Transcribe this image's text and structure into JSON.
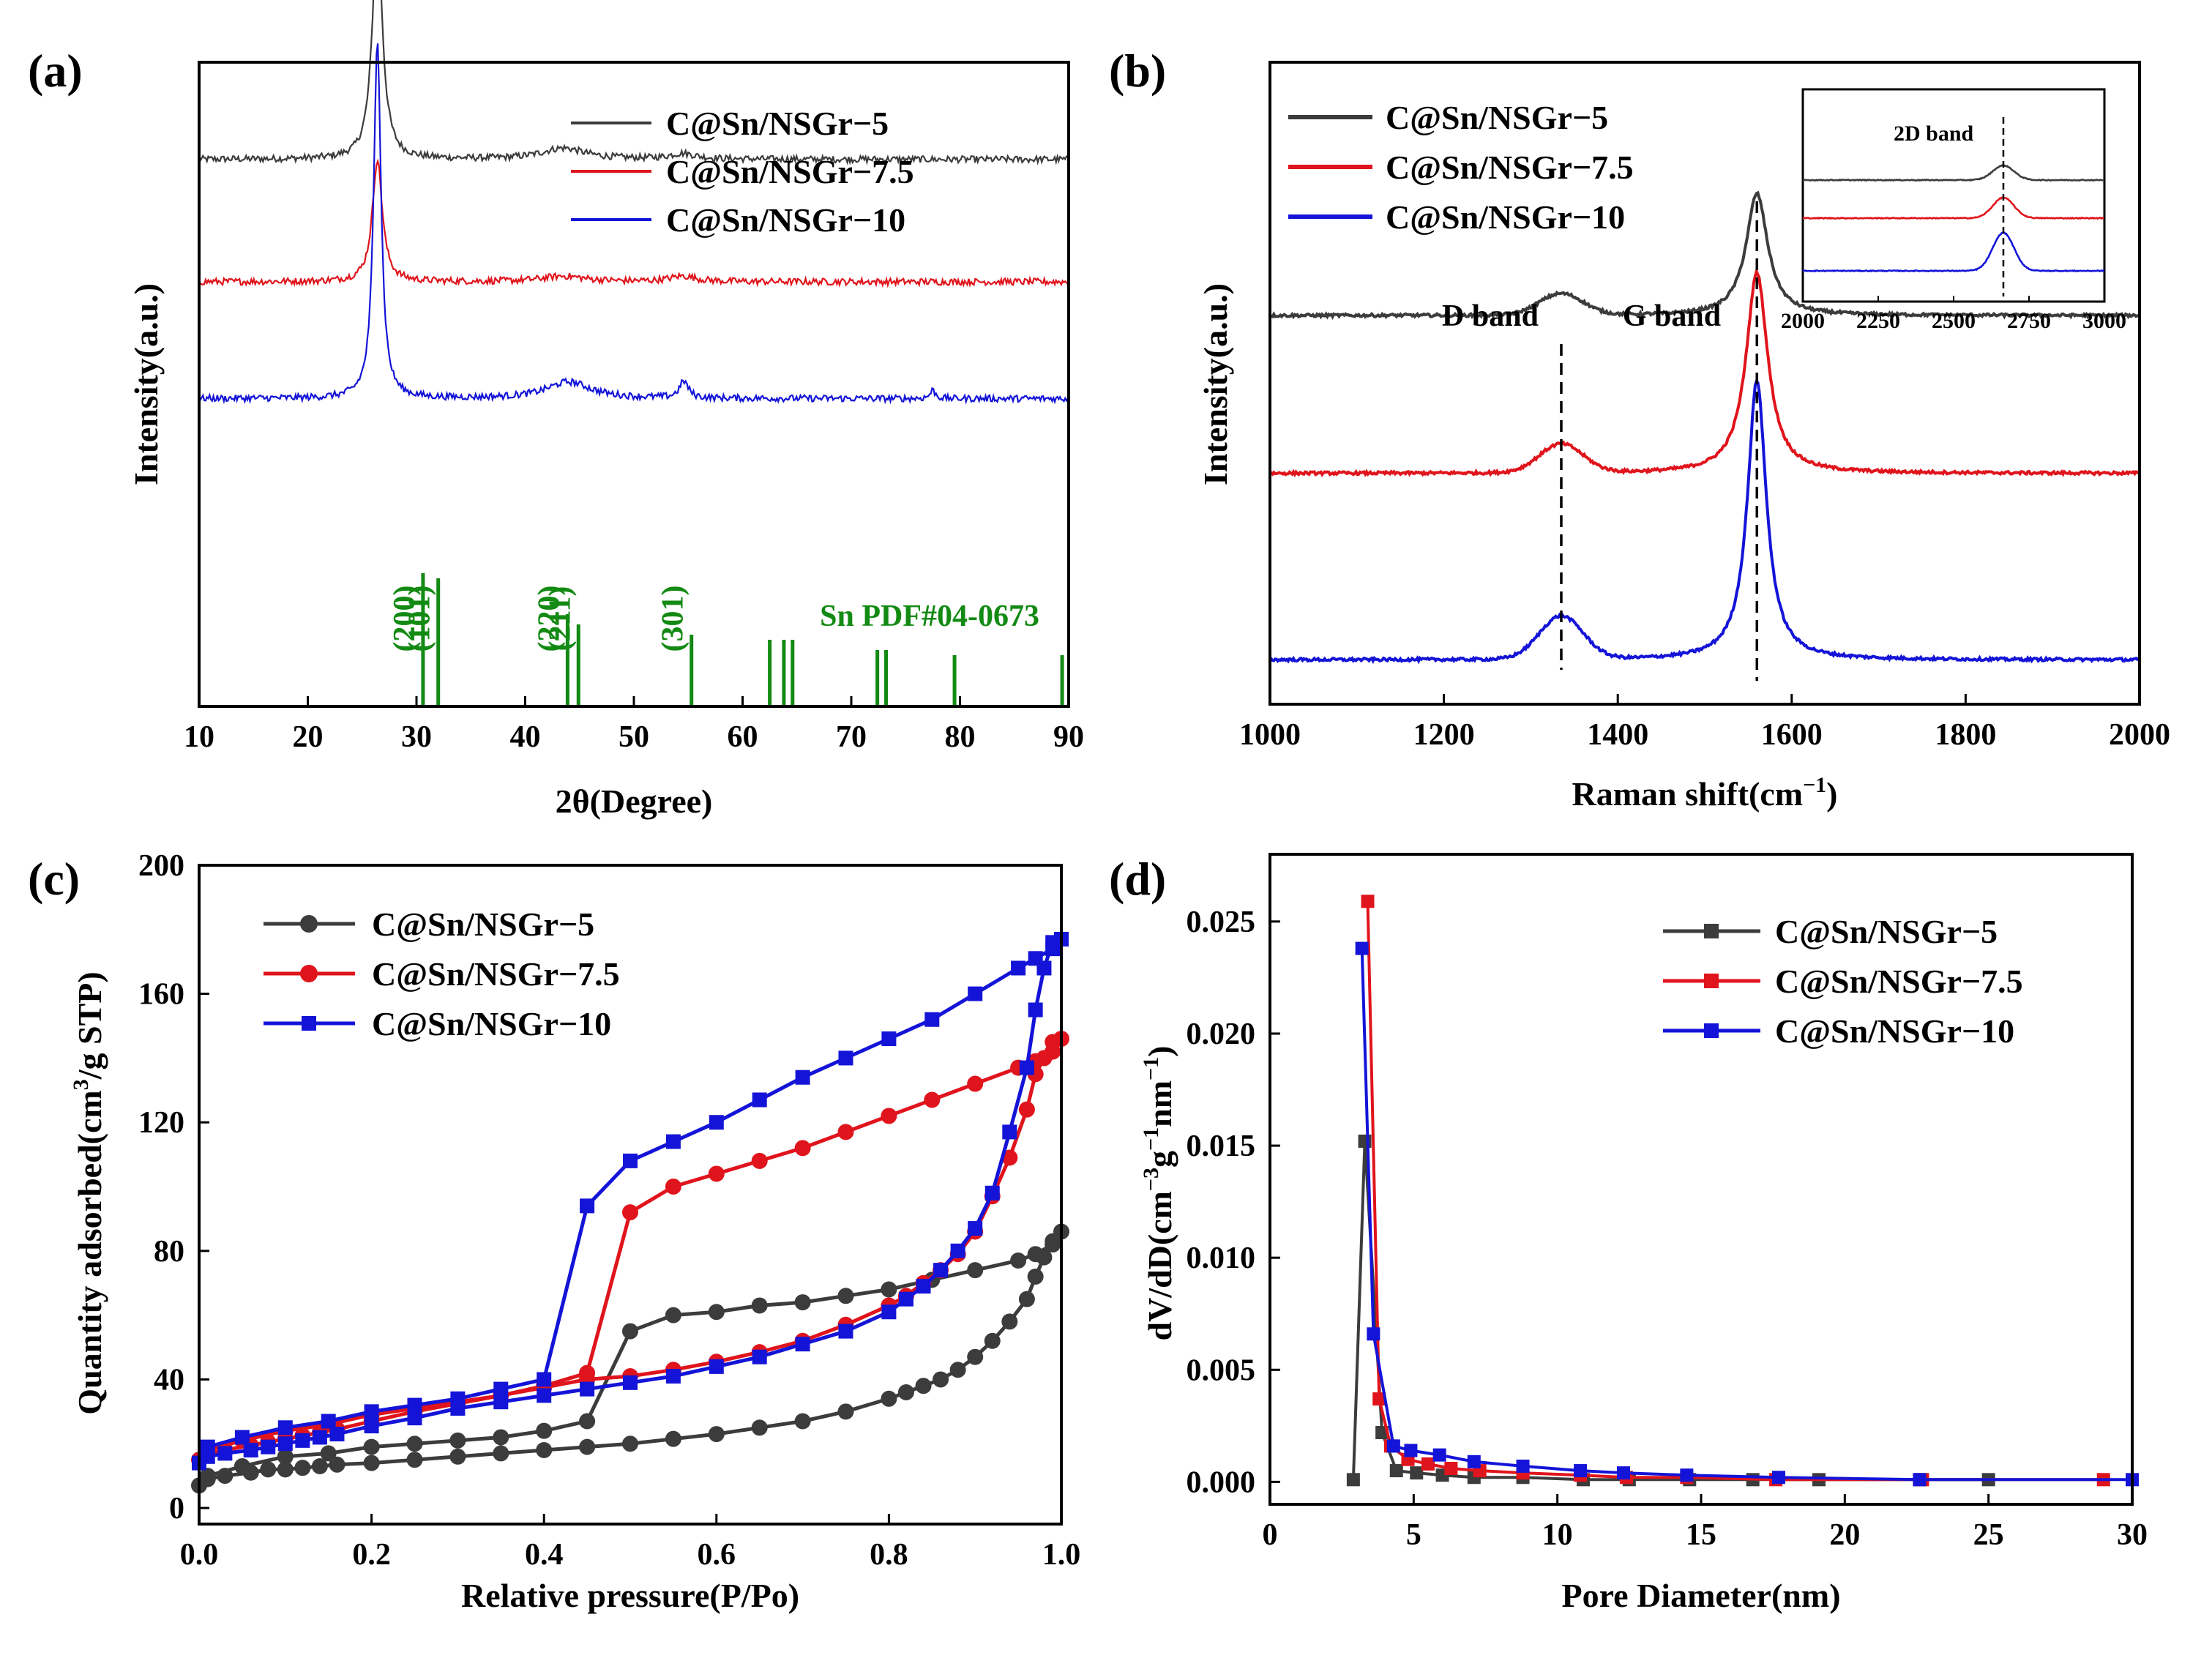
{
  "colors": {
    "series5": "#3c3c3c",
    "series75": "#e0141c",
    "series10": "#1414d8",
    "pdf": "#138a13"
  },
  "chart_data": [
    {
      "panel": "(a)",
      "type": "line",
      "title": "",
      "xlabel": "2θ(Degree)",
      "ylabel": "Intensity(a.u.)",
      "xlim": [
        10,
        90
      ],
      "xticks": [
        10,
        20,
        30,
        40,
        50,
        60,
        70,
        80,
        90
      ],
      "legend": [
        "C@Sn/NSGr−5",
        "C@Sn/NSGr−7.5",
        "C@Sn/NSGr−10"
      ],
      "legend_position": "top-right",
      "series": [
        {
          "name": "C@Sn/NSGr−5",
          "baseline": 0.72,
          "peaks": [
            [
              26.4,
              0.42,
              0.55
            ],
            [
              43.5,
              0.02,
              2.5
            ],
            [
              54.5,
              0.01,
              1.5
            ]
          ]
        },
        {
          "name": "C@Sn/NSGr−7.5",
          "baseline": 0.5,
          "peaks": [
            [
              26.4,
              0.22,
              0.55
            ],
            [
              43.5,
              0.01,
              2.5
            ],
            [
              54.5,
              0.01,
              1.5
            ]
          ]
        },
        {
          "name": "C@Sn/NSGr−10",
          "baseline": 0.29,
          "peaks": [
            [
              26.4,
              0.65,
              0.4
            ],
            [
              44.0,
              0.03,
              2.5
            ],
            [
              54.6,
              0.03,
              0.5
            ],
            [
              77.5,
              0.015,
              0.3
            ]
          ]
        }
      ],
      "reference": {
        "name": "Sn PDF#04-0673",
        "lines": [
          30.6,
          32.0,
          43.9,
          44.9,
          55.3,
          62.5,
          63.8,
          64.6,
          72.4,
          73.2,
          79.5,
          89.4
        ],
        "heights": [
          0.26,
          0.25,
          0.18,
          0.16,
          0.14,
          0.13,
          0.13,
          0.13,
          0.11,
          0.11,
          0.1,
          0.1
        ],
        "labels": [
          {
            "text": "(200)",
            "x": 30.6
          },
          {
            "text": "(101)",
            "x": 32.0
          },
          {
            "text": "(220)",
            "x": 43.9
          },
          {
            "text": "(211)",
            "x": 44.9
          },
          {
            "text": "(301)",
            "x": 55.3
          }
        ]
      }
    },
    {
      "panel": "(b)",
      "type": "line",
      "xlabel": "Raman shift(cm",
      "xlabel_sup": "−1",
      "xlabel_tail": ")",
      "ylabel": "Intensity(a.u.)",
      "xlim": [
        1000,
        2000
      ],
      "xticks": [
        1000,
        1200,
        1400,
        1600,
        1800,
        2000
      ],
      "legend": [
        "C@Sn/NSGr−5",
        "C@Sn/NSGr−7.5",
        "C@Sn/NSGr−10"
      ],
      "legend_position": "top-left",
      "annotations": {
        "d_band": "D band",
        "g_band": "G band",
        "d_x": 1335,
        "g_x": 1560
      },
      "series": [
        {
          "name": "C@Sn/NSGr−5",
          "baseline": 0.55,
          "d": [
            1335,
            0.03,
            25
          ],
          "g": [
            1560,
            0.17,
            15
          ]
        },
        {
          "name": "C@Sn/NSGr−7.5",
          "baseline": 0.33,
          "d": [
            1335,
            0.04,
            25
          ],
          "g": [
            1560,
            0.28,
            15
          ]
        },
        {
          "name": "C@Sn/NSGr−10",
          "baseline": 0.07,
          "d": [
            1335,
            0.06,
            25
          ],
          "g": [
            1560,
            0.39,
            13
          ]
        }
      ],
      "inset": {
        "title": "2D band",
        "xlim": [
          2000,
          3000
        ],
        "xticks": [
          2000,
          2250,
          2500,
          2750,
          3000
        ],
        "peak_x": 2665,
        "series": [
          {
            "name": "C@Sn/NSGr−5",
            "baseline": 0.72,
            "amp": 0.1
          },
          {
            "name": "C@Sn/NSGr−7.5",
            "baseline": 0.46,
            "amp": 0.14
          },
          {
            "name": "C@Sn/NSGr−10",
            "baseline": 0.1,
            "amp": 0.26
          }
        ]
      }
    },
    {
      "panel": "(c)",
      "type": "line",
      "xlabel": "Relative pressure(P/Po)",
      "ylabel": "Quantity adsorbed(cm",
      "ylabel_sup": "3",
      "ylabel_tail": "/g STP)",
      "xlim": [
        0.0,
        1.0
      ],
      "ylim": [
        -5,
        200
      ],
      "xticks": [
        0.0,
        0.2,
        0.4,
        0.6,
        0.8,
        1.0
      ],
      "yticks": [
        0,
        40,
        80,
        120,
        160,
        200
      ],
      "legend": [
        "C@Sn/NSGr−5",
        "C@Sn/NSGr−7.5",
        "C@Sn/NSGr−10"
      ],
      "legend_position": "top-left",
      "series": [
        {
          "name": "C@Sn/NSGr−5",
          "marker": "circle",
          "x": [
            0.0,
            0.01,
            0.03,
            0.06,
            0.08,
            0.1,
            0.12,
            0.14,
            0.16,
            0.2,
            0.25,
            0.3,
            0.35,
            0.4,
            0.45,
            0.5,
            0.55,
            0.6,
            0.65,
            0.7,
            0.75,
            0.8,
            0.82,
            0.84,
            0.86,
            0.88,
            0.9,
            0.92,
            0.94,
            0.96,
            0.97,
            0.98,
            0.99,
            1.0,
            0.99,
            0.97,
            0.95,
            0.9,
            0.85,
            0.8,
            0.75,
            0.7,
            0.65,
            0.6,
            0.55,
            0.5,
            0.45,
            0.4,
            0.35,
            0.3,
            0.25,
            0.2,
            0.15,
            0.1,
            0.05,
            0.01
          ],
          "y": [
            7,
            9,
            10,
            11,
            12,
            12,
            12.5,
            13,
            13.5,
            14,
            15,
            16,
            17,
            18,
            19,
            20,
            21.5,
            23,
            25,
            27,
            30,
            34,
            36,
            38,
            40,
            43,
            47,
            52,
            58,
            65,
            72,
            78,
            83,
            86,
            82,
            79,
            77,
            74,
            71,
            68,
            66,
            64,
            63,
            61,
            60,
            55,
            27,
            24,
            22,
            21,
            20,
            19,
            17,
            16,
            13,
            10
          ]
        },
        {
          "name": "C@Sn/NSGr−7.5",
          "marker": "circle",
          "x": [
            0.0,
            0.01,
            0.03,
            0.06,
            0.08,
            0.1,
            0.12,
            0.14,
            0.16,
            0.2,
            0.25,
            0.3,
            0.35,
            0.4,
            0.45,
            0.5,
            0.55,
            0.6,
            0.65,
            0.7,
            0.75,
            0.8,
            0.82,
            0.84,
            0.86,
            0.88,
            0.9,
            0.92,
            0.94,
            0.96,
            0.97,
            0.98,
            0.99,
            1.0,
            0.99,
            0.97,
            0.95,
            0.9,
            0.85,
            0.8,
            0.75,
            0.7,
            0.65,
            0.6,
            0.55,
            0.5,
            0.45,
            0.4,
            0.35,
            0.3,
            0.25,
            0.2,
            0.15,
            0.1,
            0.05,
            0.01
          ],
          "y": [
            15,
            17,
            18,
            19.5,
            20.5,
            21.5,
            22.5,
            23.5,
            24.5,
            27,
            30,
            32.5,
            35,
            37.5,
            40,
            41,
            43,
            45.5,
            48.5,
            52,
            57,
            63,
            66,
            70,
            74,
            79,
            86,
            97,
            109,
            124,
            135,
            140,
            145,
            146,
            142,
            139,
            137,
            132,
            127,
            122,
            117,
            112,
            108,
            104,
            100,
            92,
            42,
            38,
            35,
            33,
            31,
            29,
            26,
            24,
            21,
            18
          ]
        },
        {
          "name": "C@Sn/NSGr−10",
          "marker": "square",
          "x": [
            0.0,
            0.01,
            0.03,
            0.06,
            0.08,
            0.1,
            0.12,
            0.14,
            0.16,
            0.2,
            0.25,
            0.3,
            0.35,
            0.4,
            0.45,
            0.5,
            0.55,
            0.6,
            0.65,
            0.7,
            0.75,
            0.8,
            0.82,
            0.84,
            0.86,
            0.88,
            0.9,
            0.92,
            0.94,
            0.96,
            0.97,
            0.98,
            0.99,
            1.0,
            0.99,
            0.97,
            0.95,
            0.9,
            0.85,
            0.8,
            0.75,
            0.7,
            0.65,
            0.6,
            0.55,
            0.5,
            0.45,
            0.4,
            0.35,
            0.3,
            0.25,
            0.2,
            0.15,
            0.1,
            0.05,
            0.01
          ],
          "y": [
            14,
            16,
            17,
            18,
            19,
            20,
            21,
            22,
            23,
            25.5,
            28,
            31,
            33,
            35,
            37,
            39,
            41,
            44,
            47,
            51,
            55,
            61,
            65,
            69,
            74,
            80,
            87,
            98,
            117,
            137,
            155,
            168,
            176,
            177,
            174,
            171,
            168,
            160,
            152,
            146,
            140,
            134,
            127,
            120,
            114,
            108,
            94,
            40,
            37,
            34,
            32,
            30,
            27,
            25,
            22,
            19
          ]
        }
      ]
    },
    {
      "panel": "(d)",
      "type": "line",
      "xlabel": "Pore Diameter(nm)",
      "ylabel": "dV/dD(cm",
      "ylabel_sup1": "−3",
      "ylabel_mid": "g",
      "ylabel_sup2": "−1",
      "ylabel_mid2": "nm",
      "ylabel_sup3": "−1",
      "ylabel_tail": ")",
      "xlim": [
        0,
        30
      ],
      "ylim": [
        -0.001,
        0.028
      ],
      "xticks": [
        0,
        5,
        10,
        15,
        20,
        25,
        30
      ],
      "yticks": [
        "0.000",
        "0.005",
        "0.010",
        "0.015",
        "0.020",
        "0.025"
      ],
      "legend": [
        "C@Sn/NSGr−5",
        "C@Sn/NSGr−7.5",
        "C@Sn/NSGr−10"
      ],
      "legend_position": "top-right",
      "series": [
        {
          "name": "C@Sn/NSGr−5",
          "marker": "square",
          "x": [
            2.9,
            3.3,
            3.9,
            4.4,
            5.1,
            6.0,
            7.1,
            8.8,
            10.9,
            12.5,
            14.6,
            16.8,
            19.1,
            22.6,
            25.0
          ],
          "y": [
            0.0001,
            0.0152,
            0.0022,
            0.0005,
            0.0004,
            0.0003,
            0.0002,
            0.0002,
            0.0001,
            0.0001,
            0.0001,
            0.0001,
            0.0001,
            0.0001,
            0.0001
          ]
        },
        {
          "name": "C@Sn/NSGr−7.5",
          "marker": "square",
          "x": [
            3.4,
            3.8,
            4.2,
            4.8,
            5.5,
            6.3,
            7.3,
            8.8,
            10.8,
            12.4,
            14.5,
            17.6,
            22.7,
            29.0
          ],
          "y": [
            0.0259,
            0.0037,
            0.0016,
            0.001,
            0.0008,
            0.0006,
            0.0005,
            0.0004,
            0.0003,
            0.0002,
            0.0002,
            0.0001,
            0.0001,
            0.0001
          ]
        },
        {
          "name": "C@Sn/NSGr−10",
          "marker": "square",
          "x": [
            3.2,
            3.6,
            4.3,
            4.9,
            5.9,
            7.1,
            8.8,
            10.8,
            12.3,
            14.5,
            17.7,
            22.6,
            30.0
          ],
          "y": [
            0.0238,
            0.0066,
            0.0016,
            0.0014,
            0.0012,
            0.0009,
            0.0007,
            0.0005,
            0.0004,
            0.0003,
            0.0002,
            0.0001,
            0.0001
          ]
        }
      ]
    }
  ]
}
